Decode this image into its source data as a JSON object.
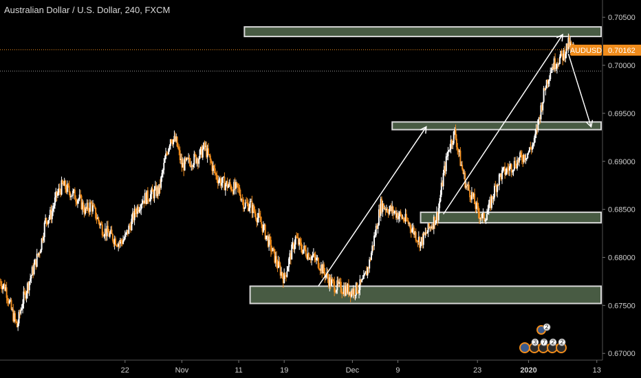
{
  "title": "Australian Dollar / U.S. Dollar, 240, FXCM",
  "colors": {
    "background": "#000000",
    "candle_up": "#ffffff",
    "candle_down": "#f08c1c",
    "zone_fill": "#556b4f",
    "zone_stroke": "#d8d8d8",
    "price_line": "#f08c1c",
    "badge": "#f08c1c"
  },
  "price_badge": {
    "symbol": "AUDUSD",
    "value": "0.70162"
  },
  "chart_data": {
    "type": "candlestick",
    "symbol": "AUDUSD",
    "interval": "240",
    "source": "FXCM",
    "ylim": [
      0.6693,
      0.7068
    ],
    "x_range": [
      "2019-09-30",
      "2020-01-14"
    ],
    "y_ticks": [
      "0.70500",
      "0.70000",
      "0.69500",
      "0.69000",
      "0.68500",
      "0.68000",
      "0.67500",
      "0.67000"
    ],
    "y_tick_values": [
      0.705,
      0.7,
      0.695,
      0.69,
      0.685,
      0.68,
      0.675,
      0.67
    ],
    "x_ticks": [
      {
        "label": "22",
        "date": "2019-10-22"
      },
      {
        "label": "Nov",
        "date": "2019-11-01"
      },
      {
        "label": "11",
        "date": "2019-11-11"
      },
      {
        "label": "19",
        "date": "2019-11-19"
      },
      {
        "label": "Dec",
        "date": "2019-12-01"
      },
      {
        "label": "9",
        "date": "2019-12-09"
      },
      {
        "label": "23",
        "date": "2019-12-23"
      },
      {
        "label": "2020",
        "date": "2020-01-01",
        "bold": true
      },
      {
        "label": "13",
        "date": "2020-01-13"
      }
    ],
    "last_price": 0.70162,
    "dotted_level": 0.6994,
    "path": [
      [
        "2019-09-30",
        0.6775
      ],
      [
        "2019-10-01",
        0.6768
      ],
      [
        "2019-10-02",
        0.6745
      ],
      [
        "2019-10-03",
        0.6728
      ],
      [
        "2019-10-04",
        0.6755
      ],
      [
        "2019-10-07",
        0.6808
      ],
      [
        "2019-10-08",
        0.6838
      ],
      [
        "2019-10-09",
        0.6845
      ],
      [
        "2019-10-10",
        0.6865
      ],
      [
        "2019-10-11",
        0.6875
      ],
      [
        "2019-10-14",
        0.686
      ],
      [
        "2019-10-15",
        0.6848
      ],
      [
        "2019-10-16",
        0.6855
      ],
      [
        "2019-10-17",
        0.6842
      ],
      [
        "2019-10-18",
        0.683
      ],
      [
        "2019-10-21",
        0.6815
      ],
      [
        "2019-10-22",
        0.682
      ],
      [
        "2019-10-23",
        0.6835
      ],
      [
        "2019-10-24",
        0.685
      ],
      [
        "2019-10-25",
        0.686
      ],
      [
        "2019-10-28",
        0.687
      ],
      [
        "2019-10-29",
        0.69
      ],
      [
        "2019-10-30",
        0.6925
      ],
      [
        "2019-10-31",
        0.692
      ],
      [
        "2019-11-01",
        0.6895
      ],
      [
        "2019-11-04",
        0.6905
      ],
      [
        "2019-11-05",
        0.6915
      ],
      [
        "2019-11-06",
        0.69
      ],
      [
        "2019-11-07",
        0.6885
      ],
      [
        "2019-11-08",
        0.6878
      ],
      [
        "2019-11-11",
        0.687
      ],
      [
        "2019-11-12",
        0.6855
      ],
      [
        "2019-11-13",
        0.6855
      ],
      [
        "2019-11-14",
        0.6845
      ],
      [
        "2019-11-15",
        0.6835
      ],
      [
        "2019-11-18",
        0.679
      ],
      [
        "2019-11-19",
        0.6778
      ],
      [
        "2019-11-20",
        0.68
      ],
      [
        "2019-11-21",
        0.682
      ],
      [
        "2019-11-22",
        0.681
      ],
      [
        "2019-11-25",
        0.6795
      ],
      [
        "2019-11-26",
        0.6785
      ],
      [
        "2019-11-27",
        0.6775
      ],
      [
        "2019-11-28",
        0.677
      ],
      [
        "2019-11-29",
        0.6768
      ],
      [
        "2019-12-01",
        0.6765
      ],
      [
        "2019-12-02",
        0.6768
      ],
      [
        "2019-12-03",
        0.6775
      ],
      [
        "2019-12-04",
        0.6795
      ],
      [
        "2019-12-05",
        0.6825
      ],
      [
        "2019-12-06",
        0.6855
      ],
      [
        "2019-12-09",
        0.6845
      ],
      [
        "2019-12-10",
        0.684
      ],
      [
        "2019-12-11",
        0.6835
      ],
      [
        "2019-12-12",
        0.6825
      ],
      [
        "2019-12-13",
        0.6815
      ],
      [
        "2019-12-16",
        0.6845
      ],
      [
        "2019-12-17",
        0.6885
      ],
      [
        "2019-12-18",
        0.6915
      ],
      [
        "2019-12-19",
        0.693
      ],
      [
        "2019-12-20",
        0.69
      ],
      [
        "2019-12-21",
        0.6875
      ],
      [
        "2019-12-22",
        0.6865
      ],
      [
        "2019-12-23",
        0.6848
      ],
      [
        "2019-12-24",
        0.684
      ],
      [
        "2019-12-25",
        0.685
      ],
      [
        "2019-12-26",
        0.687
      ],
      [
        "2019-12-27",
        0.6885
      ],
      [
        "2019-12-28",
        0.689
      ],
      [
        "2019-12-29",
        0.6895
      ],
      [
        "2019-12-30",
        0.69
      ],
      [
        "2019-12-31",
        0.6905
      ],
      [
        "2020-01-01",
        0.691
      ],
      [
        "2020-01-02",
        0.692
      ],
      [
        "2020-01-03",
        0.695
      ],
      [
        "2020-01-04",
        0.698
      ],
      [
        "2020-01-05",
        0.6998
      ],
      [
        "2020-01-06",
        0.7005
      ],
      [
        "2020-01-07",
        0.701
      ],
      [
        "2020-01-08",
        0.7022
      ],
      [
        "2020-01-09",
        0.7016
      ]
    ],
    "zones": [
      {
        "name": "resistance-zone-top",
        "from": "2019-11-12",
        "to": "2020-01-14",
        "low": 0.703,
        "high": 0.704
      },
      {
        "name": "resistance-zone-mid",
        "from": "2019-12-08",
        "to": "2020-01-14",
        "low": 0.6933,
        "high": 0.6941
      },
      {
        "name": "support-zone-mid",
        "from": "2019-12-13",
        "to": "2020-01-14",
        "low": 0.6836,
        "high": 0.6847
      },
      {
        "name": "support-zone-bottom",
        "from": "2019-11-13",
        "to": "2020-01-14",
        "low": 0.6752,
        "high": 0.677
      }
    ],
    "arrows": [
      [
        [
          "2019-11-25",
          0.677
        ],
        [
          "2019-12-14",
          0.6936
        ]
      ],
      [
        [
          "2019-12-17",
          0.6845
        ],
        [
          "2020-01-07",
          0.7032
        ]
      ],
      [
        [
          "2020-01-08",
          0.7012
        ],
        [
          "2020-01-12",
          0.6936
        ]
      ]
    ]
  },
  "event_badges": {
    "top": [
      "2"
    ],
    "bottom": [
      "3",
      "7",
      "2",
      "2"
    ]
  }
}
